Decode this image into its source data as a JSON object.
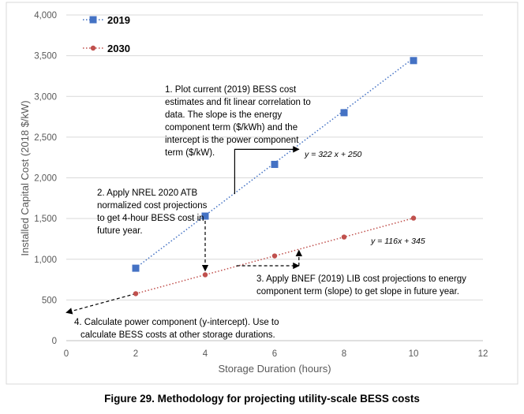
{
  "chart_data": {
    "type": "scatter",
    "title": "",
    "xlabel": "Storage Duration (hours)",
    "ylabel": "Installed Capital Cost (2018 $/kW)",
    "xlim": [
      0,
      12
    ],
    "ylim": [
      0,
      4000
    ],
    "xticks": [
      0,
      2,
      4,
      6,
      8,
      10,
      12
    ],
    "yticks": [
      0,
      500,
      1000,
      1500,
      2000,
      2500,
      3000,
      3500,
      4000
    ],
    "ytick_labels": [
      "0",
      "500",
      "1,000",
      "1,500",
      "2,000",
      "2,500",
      "3,000",
      "3,500",
      "4,000"
    ],
    "grid": true,
    "legend_position": "top-left",
    "series": [
      {
        "name": "2019",
        "color": "#4472C4",
        "marker": "square",
        "x": [
          2,
          4,
          6,
          8,
          10
        ],
        "y": [
          890,
          1530,
          2165,
          2800,
          3440
        ],
        "trendline": {
          "slope": 322,
          "intercept": 250,
          "label": "y = 322 x + 250"
        }
      },
      {
        "name": "2030",
        "color": "#C0504D",
        "marker": "circle",
        "x": [
          2,
          4,
          6,
          8,
          10
        ],
        "y": [
          577,
          809,
          1041,
          1273,
          1505
        ],
        "trendline": {
          "slope": 116,
          "intercept": 345,
          "label": "y = 116x + 345"
        }
      }
    ],
    "annotations": [
      {
        "id": "step1",
        "lines": [
          "1. Plot current (2019) BESS cost",
          "estimates and fit linear correlation to",
          "data. The slope is the energy",
          "component term ($/kWh) and the",
          "intercept is the power component",
          "term ($/kW)."
        ]
      },
      {
        "id": "step2",
        "lines": [
          "2. Apply NREL 2020 ATB",
          "normalized cost projections",
          "to get 4-hour BESS cost in",
          "future year."
        ]
      },
      {
        "id": "step3",
        "lines": [
          "3. Apply BNEF (2019) LIB cost projections to energy",
          "component term (slope) to get slope in future year."
        ]
      },
      {
        "id": "step4",
        "lines": [
          "4. Calculate power component (y-intercept). Use to",
          "calculate BESS costs at other storage durations."
        ]
      }
    ]
  },
  "caption": "Figure 29. Methodology for projecting utility-scale BESS costs"
}
